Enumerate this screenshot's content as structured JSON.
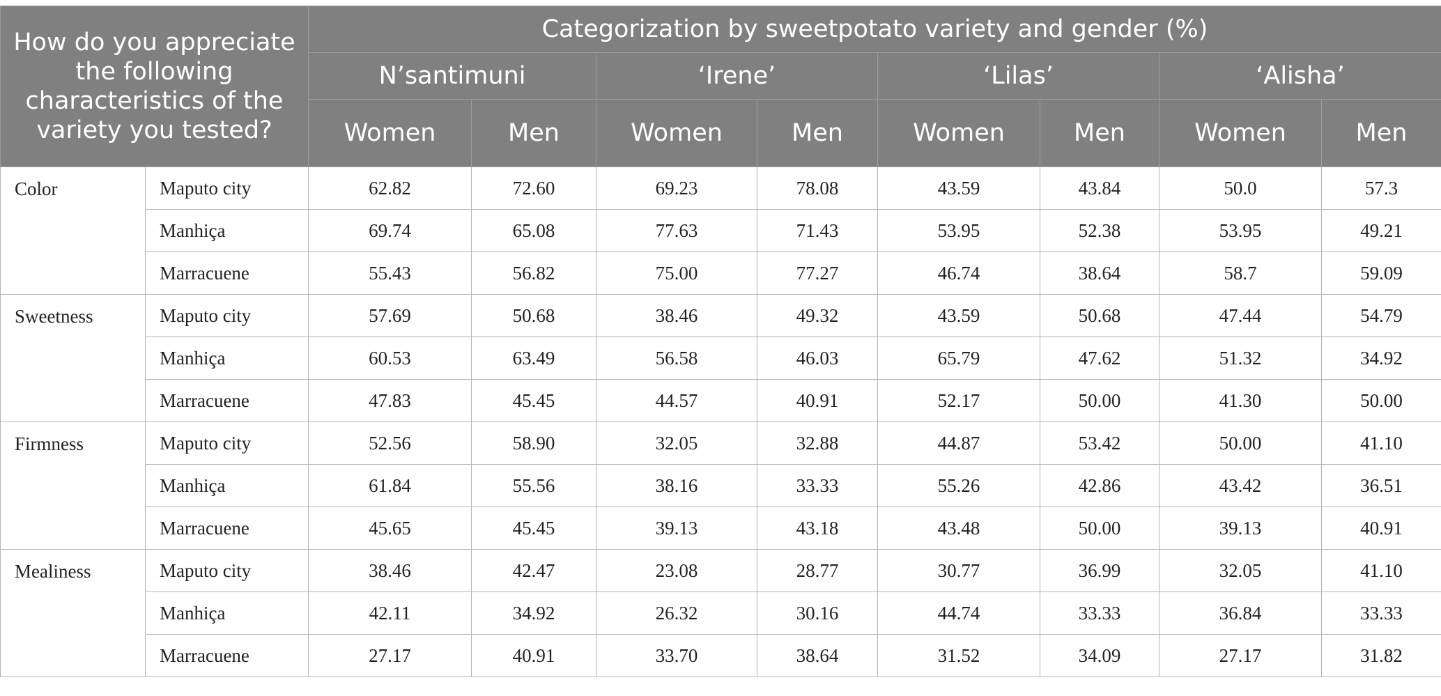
{
  "header": {
    "question": "How do you appreciate the following characteristics of the variety you tested?",
    "group_title": "Categorization by sweetpotato variety and gender (%)",
    "varieties": [
      "N’santimuni",
      "‘Irene’",
      "‘Lilas’",
      "‘Alisha’"
    ],
    "genders": [
      "Women",
      "Men",
      "Women",
      "Men",
      "Women",
      "Men",
      "Women",
      "Men"
    ]
  },
  "groups": [
    {
      "characteristic": "Color",
      "rows": [
        {
          "location": "Maputo city",
          "values": [
            "62.82",
            "72.60",
            "69.23",
            "78.08",
            "43.59",
            "43.84",
            "50.0",
            "57.3"
          ]
        },
        {
          "location": "Manhiça",
          "values": [
            "69.74",
            "65.08",
            "77.63",
            "71.43",
            "53.95",
            "52.38",
            "53.95",
            "49.21"
          ]
        },
        {
          "location": "Marracuene",
          "values": [
            "55.43",
            "56.82",
            "75.00",
            "77.27",
            "46.74",
            "38.64",
            "58.7",
            "59.09"
          ]
        }
      ]
    },
    {
      "characteristic": "Sweetness",
      "rows": [
        {
          "location": "Maputo city",
          "values": [
            "57.69",
            "50.68",
            "38.46",
            "49.32",
            "43.59",
            "50.68",
            "47.44",
            "54.79"
          ]
        },
        {
          "location": "Manhiça",
          "values": [
            "60.53",
            "63.49",
            "56.58",
            "46.03",
            "65.79",
            "47.62",
            "51.32",
            "34.92"
          ]
        },
        {
          "location": "Marracuene",
          "values": [
            "47.83",
            "45.45",
            "44.57",
            "40.91",
            "52.17",
            "50.00",
            "41.30",
            "50.00"
          ]
        }
      ]
    },
    {
      "characteristic": "Firmness",
      "rows": [
        {
          "location": "Maputo city",
          "values": [
            "52.56",
            "58.90",
            "32.05",
            "32.88",
            "44.87",
            "53.42",
            "50.00",
            "41.10"
          ]
        },
        {
          "location": "Manhiça",
          "values": [
            "61.84",
            "55.56",
            "38.16",
            "33.33",
            "55.26",
            "42.86",
            "43.42",
            "36.51"
          ]
        },
        {
          "location": "Marracuene",
          "values": [
            "45.65",
            "45.45",
            "39.13",
            "43.18",
            "43.48",
            "50.00",
            "39.13",
            "40.91"
          ]
        }
      ]
    },
    {
      "characteristic": "Mealiness",
      "rows": [
        {
          "location": "Maputo city",
          "values": [
            "38.46",
            "42.47",
            "23.08",
            "28.77",
            "30.77",
            "36.99",
            "32.05",
            "41.10"
          ]
        },
        {
          "location": "Manhiça",
          "values": [
            "42.11",
            "34.92",
            "26.32",
            "30.16",
            "44.74",
            "33.33",
            "36.84",
            "33.33"
          ]
        },
        {
          "location": "Marracuene",
          "values": [
            "27.17",
            "40.91",
            "33.70",
            "38.64",
            "31.52",
            "34.09",
            "27.17",
            "31.82"
          ]
        }
      ]
    }
  ]
}
